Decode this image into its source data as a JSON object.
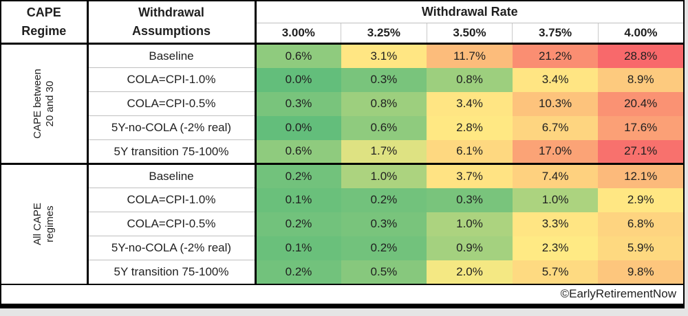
{
  "title_block": {
    "col1_line1": "CAPE",
    "col1_line2": "Regime",
    "col2_line1": "Withdrawal",
    "col2_line2": "Assumptions"
  },
  "footer": {
    "credit": "©EarlyRetirementNow"
  },
  "colors": {
    "border": "#000000",
    "thin_grid": "#BFBFBF",
    "header_grid": "#C9C9C9",
    "text": "#1F1F1F",
    "outside_bg": "#E5E5E5",
    "cell_bg": "#FFFFFF"
  },
  "chart_data": {
    "type": "heatmap",
    "column_group_label": "Withdrawal Rate",
    "columns": [
      "3.00%",
      "3.25%",
      "3.50%",
      "3.75%",
      "4.00%"
    ],
    "value_suffix": "%",
    "value_decimals": 1,
    "color_scale": {
      "type": "3-color",
      "min_value": 0.0,
      "mid_value": 2.15,
      "max_value": 28.8,
      "min_color": "#63BE7B",
      "mid_color": "#FFEB84",
      "max_color": "#F8696B"
    },
    "row_groups": [
      {
        "regime_label_lines": [
          "CAPE between",
          "20 and 30"
        ],
        "rows": [
          {
            "label": "Baseline",
            "values": [
              0.6,
              3.1,
              11.7,
              21.2,
              28.8
            ]
          },
          {
            "label": "COLA=CPI-1.0%",
            "values": [
              0.0,
              0.3,
              0.8,
              3.4,
              8.9
            ]
          },
          {
            "label": "COLA=CPI-0.5%",
            "values": [
              0.3,
              0.8,
              3.4,
              10.3,
              20.4
            ]
          },
          {
            "label": "5Y-no-COLA (-2% real)",
            "values": [
              0.0,
              0.6,
              2.8,
              6.7,
              17.6
            ]
          },
          {
            "label": "5Y transition 75-100%",
            "values": [
              0.6,
              1.7,
              6.1,
              17.0,
              27.1
            ]
          }
        ]
      },
      {
        "regime_label_lines": [
          "All CAPE",
          "regimes"
        ],
        "rows": [
          {
            "label": "Baseline",
            "values": [
              0.2,
              1.0,
              3.7,
              7.4,
              12.1
            ]
          },
          {
            "label": "COLA=CPI-1.0%",
            "values": [
              0.1,
              0.2,
              0.3,
              1.0,
              2.9
            ]
          },
          {
            "label": "COLA=CPI-0.5%",
            "values": [
              0.2,
              0.3,
              1.0,
              3.3,
              6.8
            ]
          },
          {
            "label": "5Y-no-COLA (-2% real)",
            "values": [
              0.1,
              0.2,
              0.9,
              2.3,
              5.9
            ]
          },
          {
            "label": "5Y transition 75-100%",
            "values": [
              0.2,
              0.5,
              2.0,
              5.7,
              9.8
            ]
          }
        ]
      }
    ]
  }
}
